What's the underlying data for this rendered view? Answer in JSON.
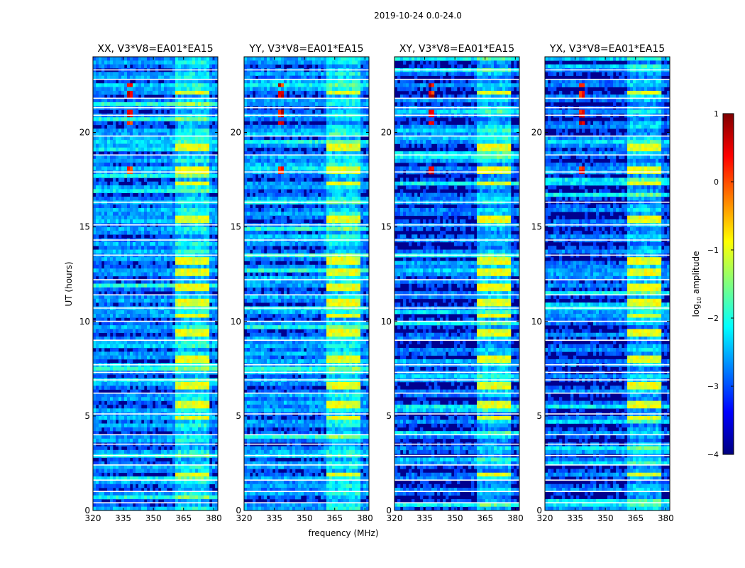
{
  "figure_title": "2019-10-24 0.0-24.0",
  "x_axis_label": "frequency (MHz)",
  "y_axis_label": "UT (hours)",
  "colorbar": {
    "label_prefix": "log",
    "label_subscript": "10",
    "label_suffix": " amplitude",
    "ticks": [
      "1",
      "0",
      "−1",
      "−2",
      "−3",
      "−4"
    ],
    "tick_values": [
      1,
      0,
      -1,
      -2,
      -3,
      -4
    ],
    "range": [
      -4,
      1
    ],
    "colormap": "jet",
    "colors": [
      "#00007f",
      "#0000ff",
      "#007fff",
      "#00ffff",
      "#7fff7f",
      "#ffff00",
      "#ff7f00",
      "#ff0000",
      "#7f0000"
    ]
  },
  "colors": {
    "background_gap": "#ffffff",
    "noise_floor": "#0000a8",
    "axis": "#000000"
  },
  "chart_data": {
    "type": "heatmap",
    "title": "2019-10-24 0.0-24.0",
    "xlabel": "frequency (MHz)",
    "ylabel": "UT (hours)",
    "xlim": [
      320,
      382
    ],
    "ylim": [
      0,
      24
    ],
    "x_ticks": [
      320,
      335,
      350,
      365,
      380
    ],
    "y_ticks": [
      0,
      5,
      10,
      15,
      20
    ],
    "panels": [
      {
        "title": "XX, V3*V8=EA01*EA15",
        "show_y_ticks": true
      },
      {
        "title": "YY, V3*V8=EA01*EA15",
        "show_y_ticks": true
      },
      {
        "title": "XY, V3*V8=EA01*EA15",
        "show_y_ticks": true
      },
      {
        "title": "YX, V3*V8=EA01*EA15",
        "show_y_ticks": true
      }
    ],
    "rfi_channels_mhz": [
      338.5
    ],
    "rfi_times_ut": [
      22.5,
      22.0,
      21.0,
      20.5,
      18.0
    ],
    "strong_band_mhz": [
      360.5,
      377.5
    ],
    "strong_band_times_ut": [
      1.9,
      4.9,
      5.6,
      6.6,
      8.0,
      9.4,
      10.3,
      11.0,
      11.8,
      12.6,
      13.2,
      15.4,
      17.3,
      18.0,
      19.2,
      22.1
    ],
    "gap_times_ut": [
      23.3,
      22.8,
      21.8,
      21.3,
      20.9,
      19.8,
      18.8,
      17.9,
      16.3,
      15.1,
      14.3,
      13.5,
      12.2,
      11.4,
      10.7,
      10.0,
      9.0,
      7.7,
      7.3,
      6.9,
      6.2,
      5.1,
      4.0,
      3.5,
      2.9,
      2.4,
      1.6,
      1.0,
      0.4
    ]
  }
}
